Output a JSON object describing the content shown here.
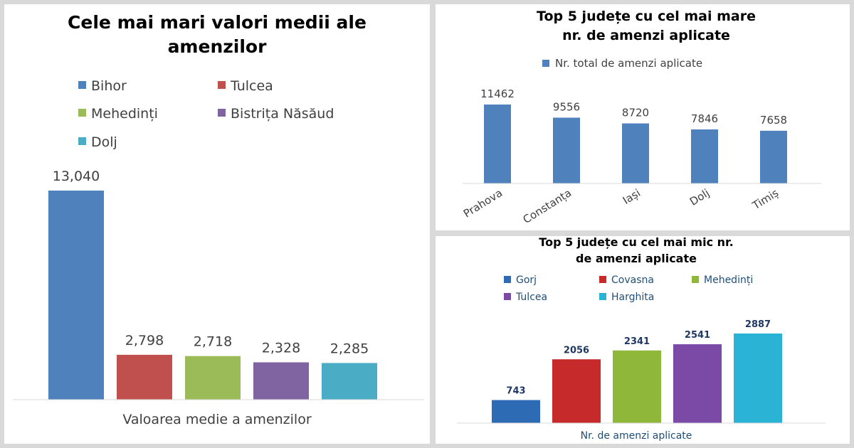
{
  "chart_data": [
    {
      "id": "left",
      "type": "bar",
      "title_lines": [
        "Cele mai mari valori medii ale",
        "amenzilor"
      ],
      "xlabel": "Valoarea medie a amenzilor",
      "ylabel": "",
      "legend_position": "top",
      "grid": false,
      "ylim": [
        0,
        13040
      ],
      "series": [
        {
          "name": "Bihor",
          "value": 13040,
          "label": "13,040",
          "color": "#4f81bd"
        },
        {
          "name": "Tulcea",
          "value": 2798,
          "label": "2,798",
          "color": "#c0504d"
        },
        {
          "name": "Mehedinți",
          "value": 2718,
          "label": "2,718",
          "color": "#9bbb59"
        },
        {
          "name": "Bistrița Năsăud",
          "value": 2328,
          "label": "2,328",
          "color": "#8064a2"
        },
        {
          "name": "Dolj",
          "value": 2285,
          "label": "2,285",
          "color": "#4bacc6"
        }
      ]
    },
    {
      "id": "top-right",
      "type": "bar",
      "title_lines": [
        "Top 5 județe cu cel mai mare",
        "nr. de amenzi aplicate"
      ],
      "legend_position": "top",
      "grid": false,
      "series_name": "Nr. total de amenzi aplicate",
      "color": "#4f81bd",
      "categories": [
        "Prahova",
        "Constanța",
        "Iași",
        "Dolj",
        "Timiș"
      ],
      "values": [
        11462,
        9556,
        8720,
        7846,
        7658
      ],
      "ylim": [
        0,
        11462
      ]
    },
    {
      "id": "bottom-right",
      "type": "bar",
      "title_lines": [
        "Top 5 județe cu cel mai mic nr.",
        "de amenzi aplicate"
      ],
      "xlabel": "Nr. de amenzi aplicate",
      "legend_position": "top",
      "grid": false,
      "ylim": [
        0,
        2887
      ],
      "series": [
        {
          "name": "Gorj",
          "value": 743,
          "color": "#2e6bb5"
        },
        {
          "name": "Covasna",
          "value": 2056,
          "color": "#c62a2a"
        },
        {
          "name": "Mehedinți",
          "value": 2341,
          "color": "#8fb83a"
        },
        {
          "name": "Tulcea",
          "value": 2541,
          "color": "#7a4aa6"
        },
        {
          "name": "Harghita",
          "value": 2887,
          "color": "#2bb3d6"
        }
      ]
    }
  ]
}
